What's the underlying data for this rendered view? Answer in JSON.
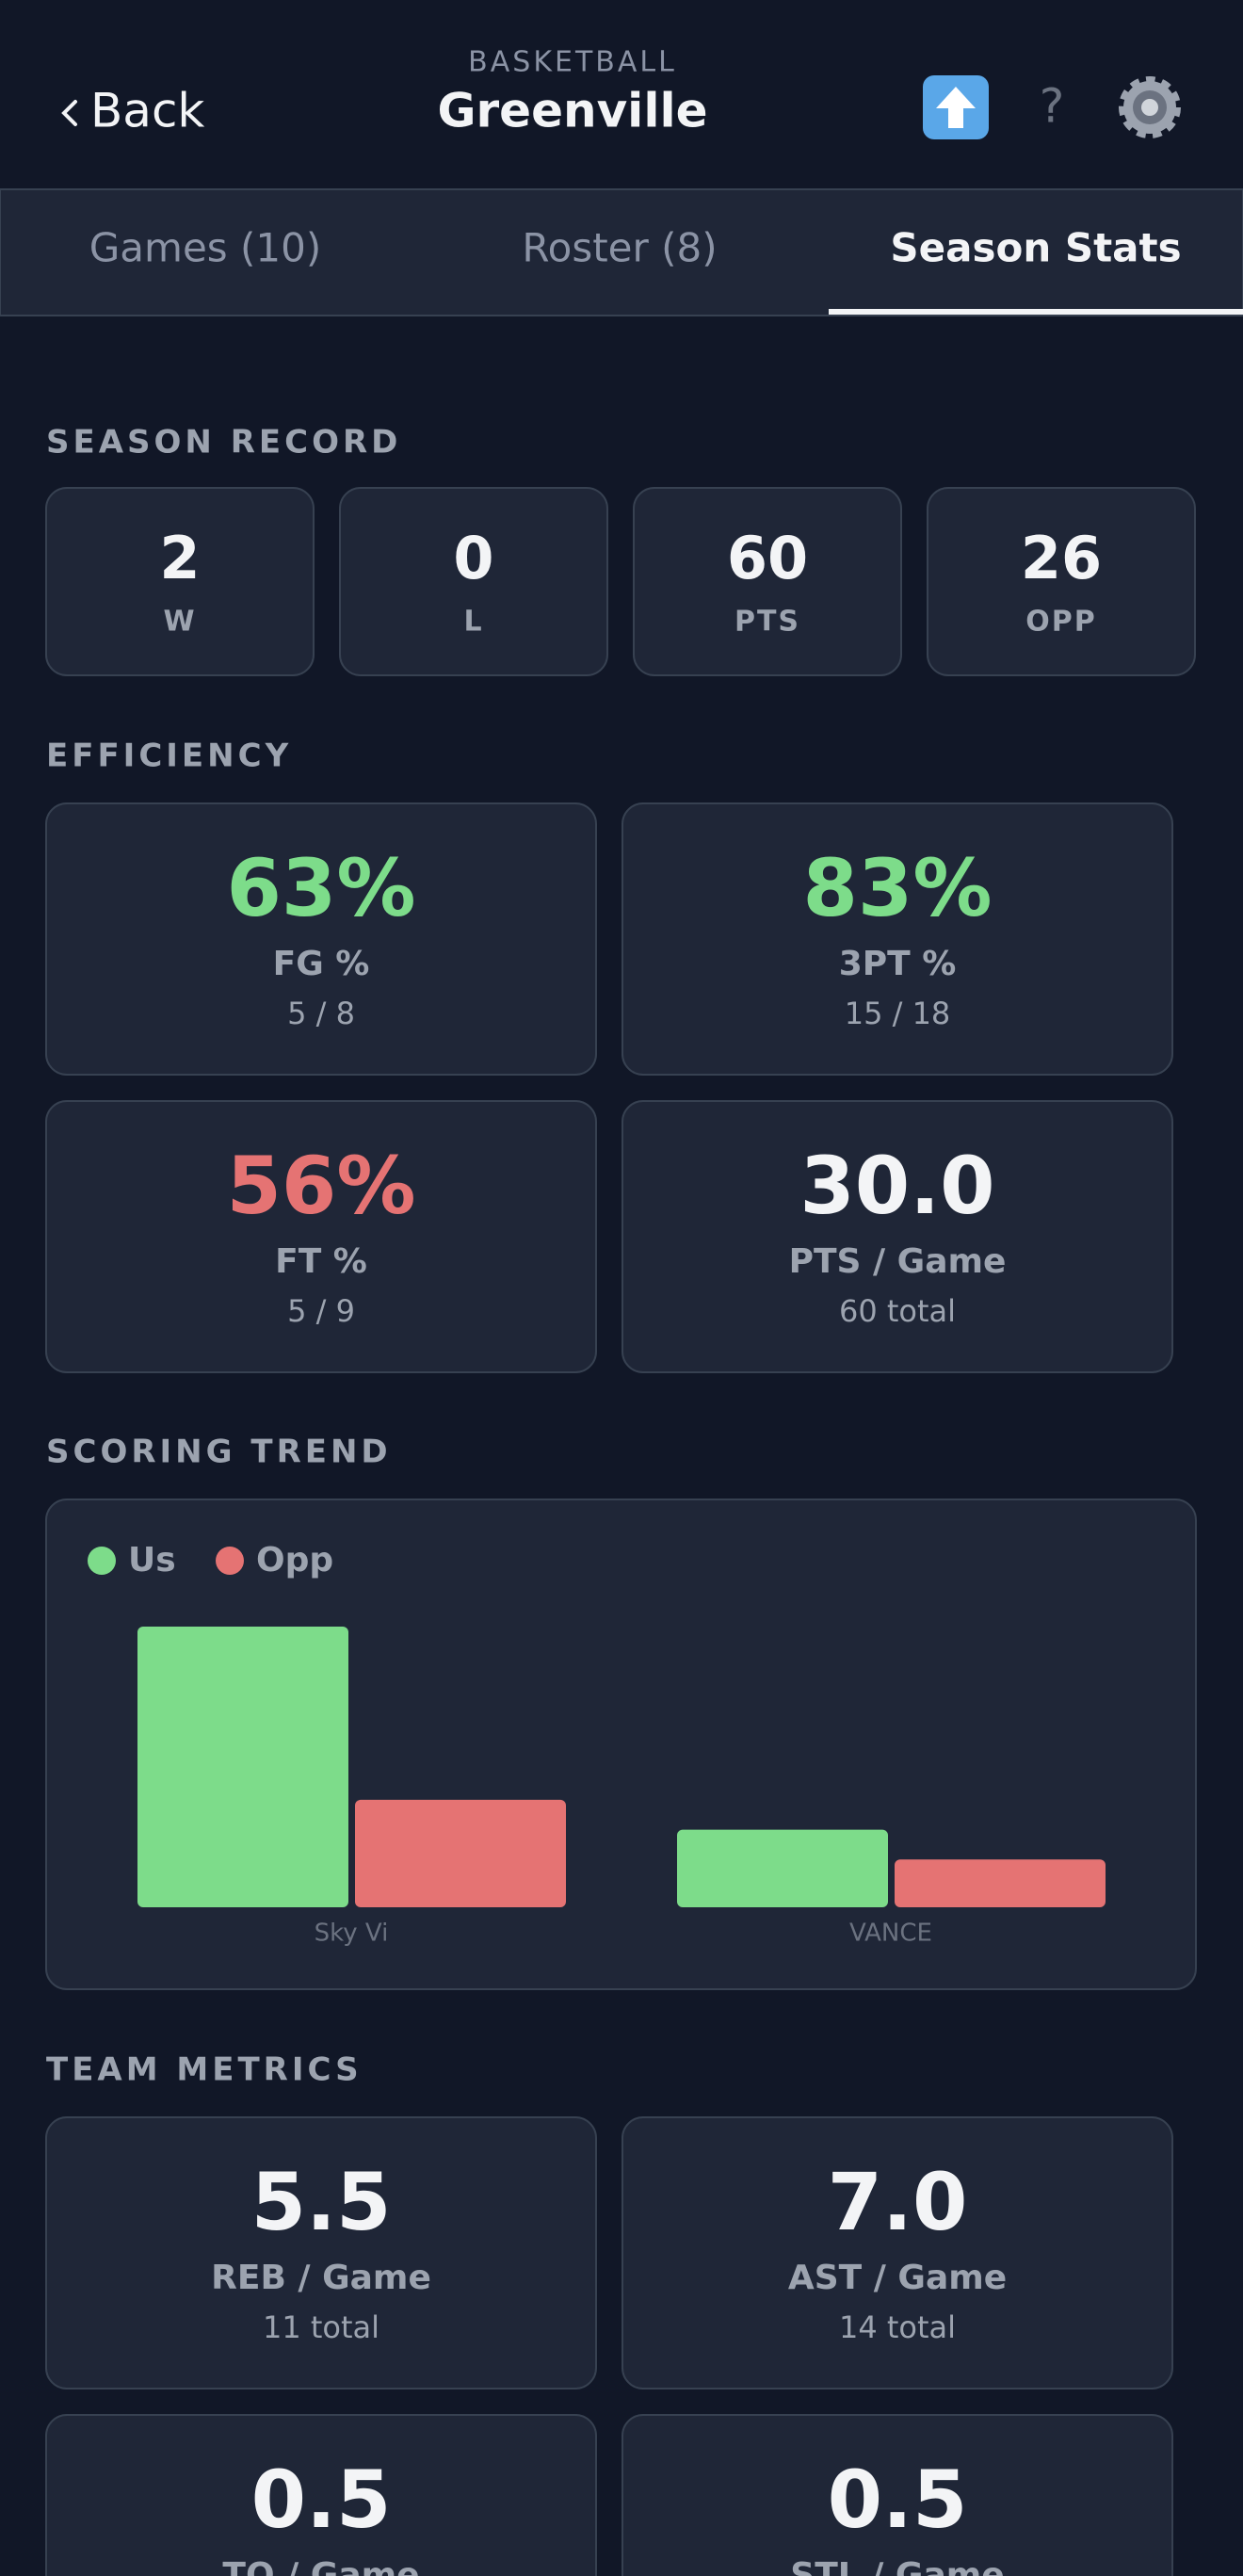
{
  "header": {
    "back": "Back",
    "subtitle": "BASKETBALL",
    "title": "Greenville",
    "help": "?"
  },
  "tabs": {
    "items": [
      "Games (10)",
      "Roster (8)",
      "Season Stats"
    ],
    "active": 2
  },
  "season_record": {
    "title": "SEASON RECORD",
    "items": [
      {
        "value": "2",
        "label": "W"
      },
      {
        "value": "0",
        "label": "L"
      },
      {
        "value": "60",
        "label": "PTS"
      },
      {
        "value": "26",
        "label": "OPP"
      }
    ]
  },
  "efficiency": {
    "title": "EFFICIENCY",
    "items": [
      {
        "value": "63%",
        "label": "FG %",
        "detail": "5 / 8",
        "color": "#7ddc8a"
      },
      {
        "value": "83%",
        "label": "3PT %",
        "detail": "15 / 18",
        "color": "#7ddc8a"
      },
      {
        "value": "56%",
        "label": "FT %",
        "detail": "5 / 9",
        "color": "#e57373"
      },
      {
        "value": "30.0",
        "label": "PTS / Game",
        "detail": "60 total",
        "color": "#f3f4f6"
      }
    ]
  },
  "scoring_trend": {
    "title": "SCORING TREND"
  },
  "chart_data": {
    "type": "bar",
    "categories": [
      "Sky Vi",
      "VANCE"
    ],
    "series": [
      {
        "name": "Us",
        "color": "#7ddc8a",
        "values": [
          47,
          13
        ]
      },
      {
        "name": "Opp",
        "color": "#e57373",
        "values": [
          18,
          8
        ]
      }
    ]
  },
  "team_metrics": {
    "title": "TEAM METRICS",
    "items": [
      {
        "value": "5.5",
        "label": "REB / Game",
        "detail": "11 total"
      },
      {
        "value": "7.0",
        "label": "AST / Game",
        "detail": "14 total"
      },
      {
        "value": "0.5",
        "label": "TO / Game",
        "detail": ""
      },
      {
        "value": "0.5",
        "label": "STL / Game",
        "detail": ""
      }
    ]
  }
}
